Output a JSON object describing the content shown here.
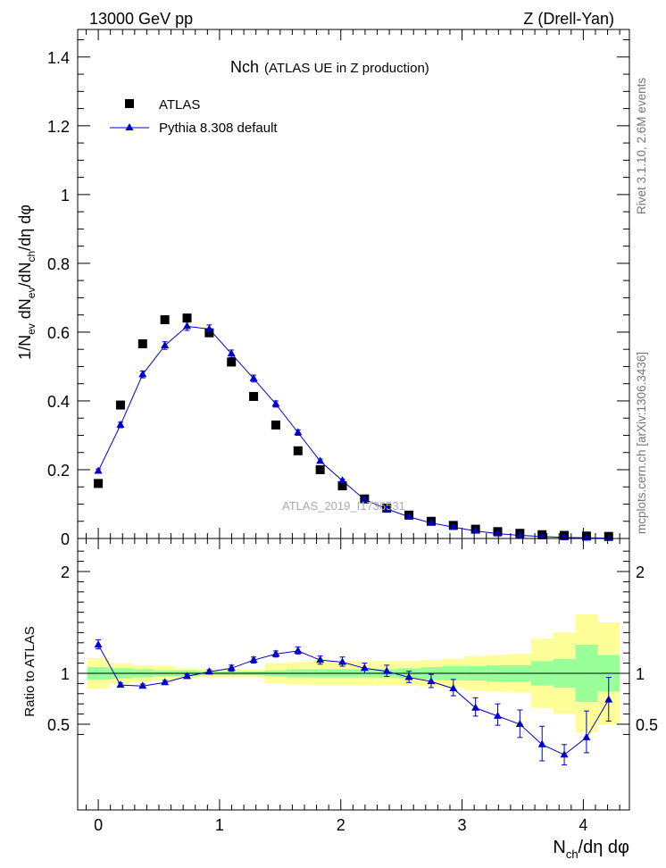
{
  "header": {
    "left": "13000 GeV pp",
    "right": "Z (Drell-Yan)"
  },
  "side": {
    "rivet": "Rivet 3.1.10,  2.6M events",
    "mcplots": "mcplots.cern.ch [arXiv:1306.3436]"
  },
  "chart_data": {
    "type": "scatter",
    "title_main": "Nch",
    "title_sub": "(ATLAS UE in Z production)",
    "watermark": "ATLAS_2019_I1736531",
    "xlabel": "N_ch/dη dφ",
    "ylabel_top": "1/N_ev dN_ev/dN_ch/dη dφ",
    "ylabel_bottom": "Ratio to ATLAS",
    "xlim": [
      -0.17,
      4.38
    ],
    "ylim_top": [
      0,
      1.48
    ],
    "ylim_bottom": [
      0.35,
      2.3
    ],
    "x_ticks": [
      "0",
      "1",
      "2",
      "3",
      "4"
    ],
    "y_ticks_top": [
      "0",
      "0.2",
      "0.4",
      "0.6",
      "0.8",
      "1",
      "1.2",
      "1.4"
    ],
    "y_ticks_bottom": [
      "0.5",
      "1",
      "2"
    ],
    "legend": {
      "position": "top-left",
      "data_label": "ATLAS",
      "mc_label": "Pythia 8.308 default"
    },
    "colors": {
      "data": "#000000",
      "mc": "#0000cc",
      "band_inner": "#99ff99",
      "band_outer": "#ffff99"
    },
    "x": [
      0.0,
      0.183,
      0.366,
      0.549,
      0.732,
      0.915,
      1.098,
      1.281,
      1.464,
      1.647,
      1.83,
      2.013,
      2.196,
      2.379,
      2.562,
      2.745,
      2.928,
      3.111,
      3.294,
      3.477,
      3.66,
      3.843,
      4.026,
      4.209
    ],
    "series": [
      {
        "name": "ATLAS",
        "values": [
          0.16,
          0.388,
          0.566,
          0.636,
          0.641,
          0.598,
          0.513,
          0.413,
          0.33,
          0.255,
          0.2,
          0.153,
          0.115,
          0.088,
          0.068,
          0.05,
          0.038,
          0.027,
          0.02,
          0.015,
          0.011,
          0.009,
          0.007,
          0.006
        ]
      },
      {
        "name": "Pythia 8.308 default",
        "values": [
          0.196,
          0.33,
          0.477,
          0.561,
          0.617,
          0.609,
          0.537,
          0.465,
          0.391,
          0.308,
          0.225,
          0.168,
          0.113,
          0.086,
          0.063,
          0.045,
          0.033,
          0.022,
          0.014,
          0.009,
          0.006,
          0.003,
          0.002,
          0.001
        ],
        "errors": [
          0.006,
          0.008,
          0.01,
          0.011,
          0.012,
          0.012,
          0.011,
          0.01,
          0.009,
          0.008,
          0.006,
          0.005,
          0.004,
          0.003,
          0.003,
          0.002,
          0.002,
          0.002,
          0.001,
          0.001,
          0.001,
          0.001,
          0.001,
          0.001
        ]
      }
    ],
    "ratio": {
      "values": [
        1.28,
        0.885,
        0.875,
        0.91,
        0.97,
        1.015,
        1.05,
        1.13,
        1.19,
        1.22,
        1.13,
        1.11,
        1.05,
        1.02,
        0.96,
        0.92,
        0.85,
        0.66,
        0.58,
        0.5,
        0.3,
        0.2,
        0.37,
        0.74
      ],
      "err_lo": [
        0.04,
        0.02,
        0.02,
        0.02,
        0.02,
        0.02,
        0.03,
        0.03,
        0.03,
        0.03,
        0.04,
        0.04,
        0.05,
        0.05,
        0.05,
        0.06,
        0.07,
        0.08,
        0.09,
        0.13,
        0.16,
        0.1,
        0.15,
        0.21
      ],
      "err_hi": [
        0.05,
        0.02,
        0.02,
        0.02,
        0.02,
        0.02,
        0.03,
        0.03,
        0.03,
        0.04,
        0.04,
        0.05,
        0.05,
        0.06,
        0.06,
        0.07,
        0.09,
        0.1,
        0.12,
        0.14,
        0.18,
        0.1,
        0.26,
        0.22
      ],
      "band_inner": [
        0.06,
        0.05,
        0.04,
        0.03,
        0.03,
        0.02,
        0.02,
        0.02,
        0.03,
        0.04,
        0.04,
        0.04,
        0.04,
        0.04,
        0.05,
        0.06,
        0.07,
        0.07,
        0.08,
        0.08,
        0.12,
        0.14,
        0.28,
        0.18
      ],
      "band_outer": [
        0.15,
        0.1,
        0.08,
        0.07,
        0.05,
        0.04,
        0.04,
        0.04,
        0.1,
        0.11,
        0.12,
        0.12,
        0.12,
        0.12,
        0.12,
        0.13,
        0.14,
        0.17,
        0.18,
        0.19,
        0.34,
        0.4,
        0.58,
        0.5
      ]
    }
  }
}
